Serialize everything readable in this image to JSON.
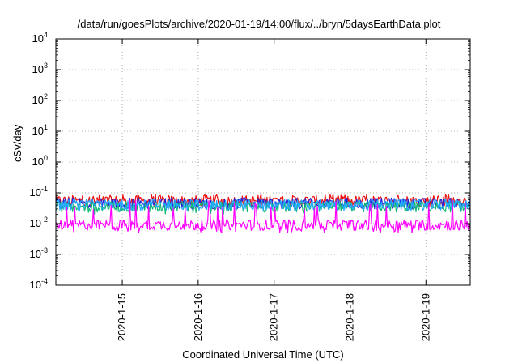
{
  "chart_data": {
    "type": "line",
    "title": "/data/run/goesPlots/archive/2020-01-19/14:00/flux/../bryn/5daysEarthData.plot",
    "xlabel": "Coordinated Universal Time (UTC)",
    "ylabel": "cSv/day",
    "y_scale": "log",
    "ylim": [
      0.0001,
      10000
    ],
    "y_ticks": [
      {
        "base": "10",
        "exp": "-4"
      },
      {
        "base": "10",
        "exp": "-3"
      },
      {
        "base": "10",
        "exp": "-2"
      },
      {
        "base": "10",
        "exp": "-1"
      },
      {
        "base": "10",
        "exp": "0"
      },
      {
        "base": "10",
        "exp": "1"
      },
      {
        "base": "10",
        "exp": "2"
      },
      {
        "base": "10",
        "exp": "3"
      },
      {
        "base": "10",
        "exp": "4"
      }
    ],
    "xlim": [
      "2020-01-14 03:00",
      "2020-01-19 14:00"
    ],
    "x_ticks": [
      "2020-1-15",
      "2020-1-16",
      "2020-1-17",
      "2020-1-18",
      "2020-1-19"
    ],
    "grid": true,
    "series": [
      {
        "color": "#ee1111",
        "typical": 0.055,
        "low": 0.035,
        "high": 0.09
      },
      {
        "color": "#2222dd",
        "typical": 0.045,
        "low": 0.03,
        "high": 0.07
      },
      {
        "color": "#11bb77",
        "typical": 0.035,
        "low": 0.02,
        "high": 0.055
      },
      {
        "color": "#22aaff",
        "typical": 0.04,
        "low": 0.025,
        "high": 0.065
      },
      {
        "color": "#ff00ff",
        "typical": 0.009,
        "low": 0.005,
        "high": 0.06
      }
    ]
  }
}
